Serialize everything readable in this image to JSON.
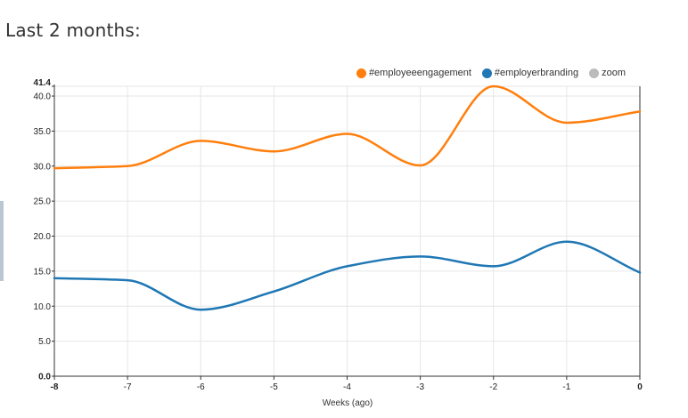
{
  "heading": "Last 2 months:",
  "chart_data": {
    "type": "line",
    "title": "",
    "xlabel": "Weeks (ago)",
    "ylabel": "",
    "x": [
      -8,
      -7,
      -6,
      -5,
      -4,
      -3,
      -2,
      -1,
      0
    ],
    "xlim": [
      -8,
      0
    ],
    "ylim": [
      0,
      41.4
    ],
    "y_ticks": [
      "0.0",
      "5.0",
      "10.0",
      "15.0",
      "20.0",
      "25.0",
      "30.0",
      "35.0",
      "40.0",
      "41.4"
    ],
    "x_ticks": [
      "-8",
      "-7",
      "-6",
      "-5",
      "-4",
      "-3",
      "-2",
      "-1",
      "0"
    ],
    "grid": true,
    "legend_position": "top-right",
    "series": [
      {
        "name": "#employeeengagement",
        "color": "#ff7f0e",
        "values": [
          29.7,
          30.0,
          33.6,
          32.1,
          34.6,
          30.1,
          41.4,
          36.2,
          37.8
        ]
      },
      {
        "name": "#employerbranding",
        "color": "#1f77b4",
        "values": [
          14.0,
          13.7,
          9.5,
          12.1,
          15.7,
          17.1,
          15.7,
          19.2,
          14.8
        ]
      }
    ],
    "extra_legend": {
      "name": "zoom",
      "color": "#bbbbbb"
    }
  }
}
